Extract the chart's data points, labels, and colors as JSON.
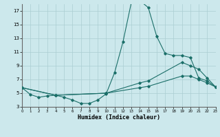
{
  "xlabel": "Humidex (Indice chaleur)",
  "bg_color": "#cce8ec",
  "line_color": "#1a6e68",
  "grid_color": "#aacdd2",
  "xlim": [
    0,
    23
  ],
  "ylim": [
    3,
    18
  ],
  "yticks": [
    3,
    5,
    7,
    9,
    11,
    13,
    15,
    17
  ],
  "xticks": [
    0,
    1,
    2,
    3,
    4,
    5,
    6,
    7,
    8,
    9,
    10,
    11,
    12,
    13,
    14,
    15,
    16,
    17,
    18,
    19,
    20,
    21,
    22,
    23
  ],
  "curve1_x": [
    0,
    1,
    2,
    3,
    4,
    5,
    6,
    7,
    8,
    9,
    10,
    11,
    12,
    13,
    14,
    15,
    16,
    17,
    18,
    19,
    20,
    21,
    22,
    23
  ],
  "curve1_y": [
    5.8,
    4.8,
    4.4,
    4.6,
    4.7,
    4.4,
    4.0,
    3.5,
    3.5,
    4.0,
    4.9,
    8.0,
    12.5,
    18.3,
    18.5,
    17.5,
    13.3,
    10.8,
    10.5,
    10.5,
    10.2,
    7.2,
    6.8,
    5.9
  ],
  "curve2_x": [
    0,
    4,
    10,
    14,
    15,
    19,
    20,
    21,
    22,
    23
  ],
  "curve2_y": [
    5.8,
    4.7,
    5.0,
    6.5,
    6.8,
    9.5,
    9.0,
    8.5,
    7.2,
    5.9
  ],
  "curve3_x": [
    0,
    4,
    10,
    14,
    15,
    19,
    20,
    21,
    22,
    23
  ],
  "curve3_y": [
    5.8,
    4.7,
    5.0,
    5.8,
    6.0,
    7.5,
    7.5,
    7.0,
    6.5,
    5.9
  ]
}
